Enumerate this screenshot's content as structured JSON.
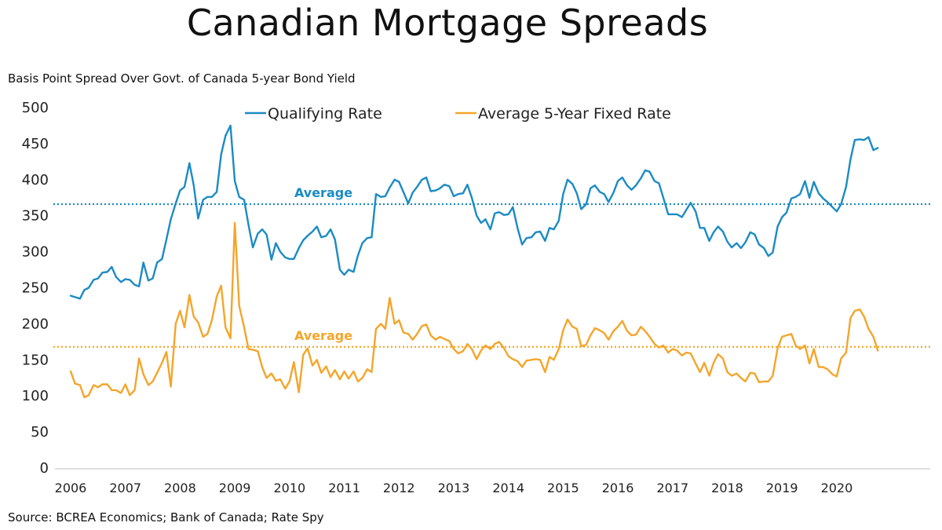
{
  "chart_data": {
    "type": "line",
    "title": "Canadian Mortgage Spreads",
    "ylabel": "Basis Point Spread Over Govt. of Canada 5-year Bond Yield",
    "xlabel": "",
    "source": "Source: BCREA Economics; Bank of Canada; Rate Spy",
    "ylim": [
      0,
      500
    ],
    "xlim": [
      2006,
      2020.833
    ],
    "yticks": [
      0,
      50,
      100,
      150,
      200,
      250,
      300,
      350,
      400,
      450,
      500
    ],
    "xticks": [
      "2006",
      "2007",
      "2008",
      "2009",
      "2010",
      "2011",
      "2012",
      "2013",
      "2014",
      "2015",
      "2016",
      "2017",
      "2018",
      "2019",
      "2020"
    ],
    "legend_position": "top-center",
    "grid": false,
    "series": [
      {
        "name": "Qualifying Rate",
        "color": "#1b8bc4",
        "average": 366,
        "average_label": "Average",
        "x": [
          2006.0,
          2006.08,
          2006.17,
          2006.25,
          2006.33,
          2006.42,
          2006.5,
          2006.58,
          2006.67,
          2006.75,
          2006.83,
          2006.92,
          2007.0,
          2007.08,
          2007.17,
          2007.25,
          2007.33,
          2007.42,
          2007.5,
          2007.58,
          2007.67,
          2007.75,
          2007.83,
          2007.92,
          2008.0,
          2008.08,
          2008.17,
          2008.25,
          2008.33,
          2008.42,
          2008.5,
          2008.58,
          2008.67,
          2008.75,
          2008.83,
          2008.92,
          2009.0,
          2009.08,
          2009.17,
          2009.25,
          2009.33,
          2009.42,
          2009.5,
          2009.58,
          2009.67,
          2009.75,
          2009.83,
          2009.92,
          2010.0,
          2010.08,
          2010.17,
          2010.25,
          2010.33,
          2010.42,
          2010.5,
          2010.58,
          2010.67,
          2010.75,
          2010.83,
          2010.92,
          2011.0,
          2011.08,
          2011.17,
          2011.25,
          2011.33,
          2011.42,
          2011.5,
          2011.58,
          2011.67,
          2011.75,
          2011.83,
          2011.92,
          2012.0,
          2012.08,
          2012.17,
          2012.25,
          2012.33,
          2012.42,
          2012.5,
          2012.58,
          2012.67,
          2012.75,
          2012.83,
          2012.92,
          2013.0,
          2013.08,
          2013.17,
          2013.25,
          2013.33,
          2013.42,
          2013.5,
          2013.58,
          2013.67,
          2013.75,
          2013.83,
          2013.92,
          2014.0,
          2014.08,
          2014.17,
          2014.25,
          2014.33,
          2014.42,
          2014.5,
          2014.58,
          2014.67,
          2014.75,
          2014.83,
          2014.92,
          2015.0,
          2015.08,
          2015.17,
          2015.25,
          2015.33,
          2015.42,
          2015.5,
          2015.58,
          2015.67,
          2015.75,
          2015.83,
          2015.92,
          2016.0,
          2016.08,
          2016.17,
          2016.25,
          2016.33,
          2016.42,
          2016.5,
          2016.58,
          2016.67,
          2016.75,
          2016.83,
          2016.92,
          2017.0,
          2017.08,
          2017.17,
          2017.25,
          2017.33,
          2017.42,
          2017.5,
          2017.58,
          2017.67,
          2017.75,
          2017.83,
          2017.92,
          2018.0,
          2018.08,
          2018.17,
          2018.25,
          2018.33,
          2018.42,
          2018.5,
          2018.58,
          2018.67,
          2018.75,
          2018.83,
          2018.92,
          2019.0,
          2019.08,
          2019.17,
          2019.25,
          2019.33,
          2019.42,
          2019.5,
          2019.58,
          2019.67,
          2019.75,
          2019.83,
          2019.92,
          2020.0,
          2020.08,
          2020.17,
          2020.25,
          2020.33,
          2020.42,
          2020.5,
          2020.58,
          2020.67,
          2020.75
        ],
        "values": [
          239,
          237,
          235,
          247,
          250,
          261,
          263,
          271,
          272,
          279,
          265,
          258,
          262,
          261,
          254,
          252,
          285,
          260,
          263,
          285,
          290,
          317,
          345,
          367,
          385,
          390,
          423,
          392,
          346,
          372,
          376,
          376,
          383,
          435,
          461,
          475,
          398,
          376,
          372,
          337,
          306,
          325,
          331,
          324,
          289,
          312,
          300,
          292,
          290,
          290,
          305,
          316,
          322,
          328,
          335,
          320,
          322,
          331,
          317,
          275,
          268,
          275,
          272,
          295,
          312,
          319,
          320,
          380,
          376,
          377,
          389,
          400,
          397,
          383,
          367,
          382,
          390,
          400,
          403,
          384,
          385,
          388,
          393,
          391,
          377,
          380,
          381,
          393,
          375,
          350,
          340,
          345,
          331,
          353,
          355,
          351,
          352,
          362,
          332,
          310,
          319,
          320,
          327,
          328,
          315,
          333,
          331,
          343,
          380,
          400,
          394,
          381,
          359,
          366,
          388,
          392,
          383,
          380,
          369,
          382,
          398,
          403,
          392,
          386,
          392,
          402,
          413,
          411,
          398,
          395,
          375,
          352,
          352,
          352,
          348,
          358,
          368,
          356,
          333,
          333,
          315,
          327,
          335,
          328,
          314,
          306,
          312,
          305,
          313,
          327,
          324,
          310,
          305,
          294,
          299,
          335,
          348,
          354,
          374,
          376,
          380,
          398,
          375,
          397,
          381,
          374,
          369,
          362,
          356,
          366,
          390,
          428,
          455,
          456,
          455,
          459,
          441,
          444
        ]
      },
      {
        "name": "Average 5-Year Fixed Rate",
        "color": "#f4a52a",
        "average": 168,
        "average_label": "Average",
        "x": [
          2006.0,
          2006.08,
          2006.17,
          2006.25,
          2006.33,
          2006.42,
          2006.5,
          2006.58,
          2006.67,
          2006.75,
          2006.83,
          2006.92,
          2007.0,
          2007.08,
          2007.17,
          2007.25,
          2007.33,
          2007.42,
          2007.5,
          2007.58,
          2007.67,
          2007.75,
          2007.83,
          2007.92,
          2008.0,
          2008.08,
          2008.17,
          2008.25,
          2008.33,
          2008.42,
          2008.5,
          2008.58,
          2008.67,
          2008.75,
          2008.83,
          2008.92,
          2009.0,
          2009.08,
          2009.17,
          2009.25,
          2009.33,
          2009.42,
          2009.5,
          2009.58,
          2009.67,
          2009.75,
          2009.83,
          2009.92,
          2010.0,
          2010.08,
          2010.17,
          2010.25,
          2010.33,
          2010.42,
          2010.5,
          2010.58,
          2010.67,
          2010.75,
          2010.83,
          2010.92,
          2011.0,
          2011.08,
          2011.17,
          2011.25,
          2011.33,
          2011.42,
          2011.5,
          2011.58,
          2011.67,
          2011.75,
          2011.83,
          2011.92,
          2012.0,
          2012.08,
          2012.17,
          2012.25,
          2012.33,
          2012.42,
          2012.5,
          2012.58,
          2012.67,
          2012.75,
          2012.83,
          2012.92,
          2013.0,
          2013.08,
          2013.17,
          2013.25,
          2013.33,
          2013.42,
          2013.5,
          2013.58,
          2013.67,
          2013.75,
          2013.83,
          2013.92,
          2014.0,
          2014.08,
          2014.17,
          2014.25,
          2014.33,
          2014.42,
          2014.5,
          2014.58,
          2014.67,
          2014.75,
          2014.83,
          2014.92,
          2015.0,
          2015.08,
          2015.17,
          2015.25,
          2015.33,
          2015.42,
          2015.5,
          2015.58,
          2015.67,
          2015.75,
          2015.83,
          2015.92,
          2016.0,
          2016.08,
          2016.17,
          2016.25,
          2016.33,
          2016.42,
          2016.5,
          2016.58,
          2016.67,
          2016.75,
          2016.83,
          2016.92,
          2017.0,
          2017.08,
          2017.17,
          2017.25,
          2017.33,
          2017.42,
          2017.5,
          2017.58,
          2017.67,
          2017.75,
          2017.83,
          2017.92,
          2018.0,
          2018.08,
          2018.17,
          2018.25,
          2018.33,
          2018.42,
          2018.5,
          2018.58,
          2018.67,
          2018.75,
          2018.83,
          2018.92,
          2019.0,
          2019.08,
          2019.17,
          2019.25,
          2019.33,
          2019.42,
          2019.5,
          2019.58,
          2019.67,
          2019.75,
          2019.83,
          2019.92,
          2020.0,
          2020.08,
          2020.17,
          2020.25,
          2020.33,
          2020.42,
          2020.5,
          2020.58,
          2020.67,
          2020.75
        ],
        "values": [
          134,
          117,
          115,
          98,
          101,
          115,
          112,
          116,
          116,
          108,
          108,
          104,
          116,
          101,
          108,
          152,
          130,
          115,
          120,
          132,
          146,
          161,
          113,
          200,
          218,
          195,
          240,
          210,
          202,
          182,
          186,
          205,
          238,
          253,
          195,
          180,
          340,
          225,
          195,
          165,
          164,
          162,
          140,
          125,
          131,
          121,
          123,
          110,
          120,
          147,
          105,
          157,
          166,
          142,
          150,
          132,
          141,
          126,
          136,
          123,
          134,
          124,
          134,
          120,
          125,
          137,
          133,
          193,
          200,
          193,
          236,
          200,
          205,
          188,
          186,
          178,
          186,
          197,
          199,
          184,
          178,
          182,
          179,
          176,
          165,
          159,
          162,
          172,
          165,
          151,
          163,
          170,
          165,
          172,
          175,
          166,
          155,
          151,
          148,
          140,
          149,
          150,
          151,
          150,
          133,
          154,
          150,
          165,
          191,
          206,
          196,
          193,
          169,
          171,
          184,
          194,
          191,
          187,
          178,
          190,
          196,
          204,
          190,
          184,
          185,
          196,
          190,
          182,
          172,
          167,
          170,
          160,
          165,
          163,
          156,
          160,
          159,
          145,
          133,
          146,
          128,
          146,
          158,
          152,
          133,
          128,
          131,
          125,
          120,
          132,
          131,
          119,
          120,
          120,
          128,
          166,
          182,
          184,
          186,
          170,
          165,
          170,
          145,
          165,
          140,
          140,
          137,
          130,
          127,
          152,
          160,
          208,
          218,
          220,
          210,
          193,
          182,
          163
        ]
      }
    ]
  }
}
